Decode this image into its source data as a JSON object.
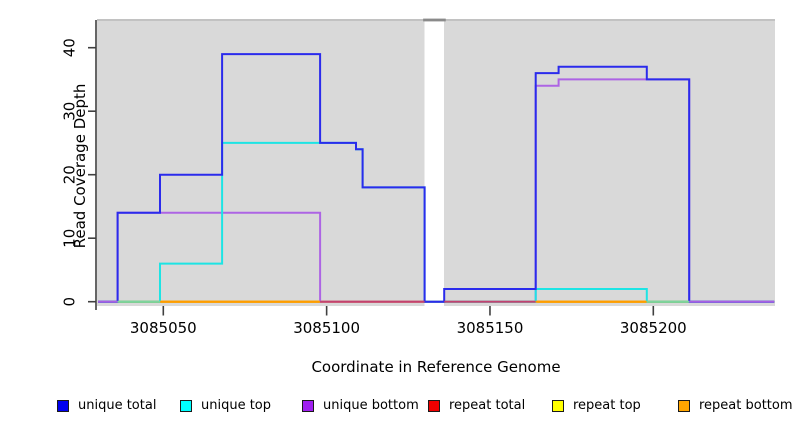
{
  "chart_data": {
    "type": "line",
    "subtype": "step-coverage-plot",
    "title": "",
    "xlabel": "Coordinate in Reference Genome",
    "ylabel": "Read Coverage Depth",
    "xlim": [
      3085030,
      3085237
    ],
    "ylim": [
      0,
      44
    ],
    "grid": "off",
    "legend_position": "bottom",
    "plot_background": "#d9d9d9",
    "x_ticks": [
      {
        "value": 3085050,
        "label": "3085050"
      },
      {
        "value": 3085100,
        "label": "3085100"
      },
      {
        "value": 3085150,
        "label": "3085150"
      },
      {
        "value": 3085200,
        "label": "3085200"
      }
    ],
    "y_ticks": [
      {
        "value": 0,
        "label": "0"
      },
      {
        "value": 10,
        "label": "10"
      },
      {
        "value": 20,
        "label": "20"
      },
      {
        "value": 30,
        "label": "30"
      },
      {
        "value": 40,
        "label": "40"
      }
    ],
    "no_coverage_gap": {
      "x_start": 3085130,
      "x_end": 3085136,
      "fill": "#ffffff",
      "top_cap_color": "#8a8a8a"
    },
    "series": [
      {
        "name": "unique total",
        "color": "#2b2bec",
        "legend_color": "#0000ee",
        "points": [
          [
            3085030,
            0
          ],
          [
            3085036,
            14
          ],
          [
            3085049,
            20
          ],
          [
            3085068,
            39
          ],
          [
            3085098,
            25
          ],
          [
            3085109,
            24
          ],
          [
            3085111,
            18
          ],
          [
            3085130,
            0
          ],
          [
            3085136,
            2
          ],
          [
            3085164,
            36
          ],
          [
            3085171,
            37
          ],
          [
            3085198,
            35
          ],
          [
            3085211,
            0
          ],
          [
            3085237,
            0
          ]
        ]
      },
      {
        "name": "unique top",
        "color": "#1de4e4",
        "legend_color": "#00ffff",
        "points": [
          [
            3085030,
            0
          ],
          [
            3085049,
            6
          ],
          [
            3085068,
            25
          ],
          [
            3085109,
            24
          ],
          [
            3085111,
            18
          ],
          [
            3085130,
            0
          ],
          [
            3085164,
            2
          ],
          [
            3085198,
            0
          ],
          [
            3085237,
            0
          ]
        ]
      },
      {
        "name": "unique bottom",
        "color": "#ad64e4",
        "legend_color": "#a020f0",
        "points": [
          [
            3085030,
            0
          ],
          [
            3085036,
            14
          ],
          [
            3085098,
            0
          ],
          [
            3085164,
            34
          ],
          [
            3085171,
            35
          ],
          [
            3085211,
            0
          ],
          [
            3085237,
            0
          ]
        ]
      },
      {
        "name": "repeat total",
        "color": "#cc2233",
        "legend_color": "#ee0000",
        "points": [
          [
            3085030,
            0
          ],
          [
            3085237,
            0
          ]
        ]
      },
      {
        "name": "repeat top",
        "color": "#f2f20a",
        "legend_color": "#ffff00",
        "points": [
          [
            3085030,
            0
          ],
          [
            3085237,
            0
          ]
        ]
      },
      {
        "name": "repeat bottom",
        "color": "#ff9d00",
        "legend_color": "#ffa500",
        "points": [
          [
            3085030,
            0
          ],
          [
            3085237,
            0
          ]
        ]
      }
    ],
    "baseline_overlap_segments": [
      {
        "x1": 3085030,
        "x2": 3085036,
        "color": "#a95fe3"
      },
      {
        "x1": 3085036,
        "x2": 3085049,
        "color": "#7ed49e"
      },
      {
        "x1": 3085049,
        "x2": 3085098,
        "color": "#ff9d00"
      },
      {
        "x1": 3085098,
        "x2": 3085130,
        "color": "#c34270"
      },
      {
        "x1": 3085136,
        "x2": 3085164,
        "color": "#c34270"
      },
      {
        "x1": 3085164,
        "x2": 3085198,
        "color": "#ff9d00"
      },
      {
        "x1": 3085198,
        "x2": 3085211,
        "color": "#7ed49e"
      },
      {
        "x1": 3085211,
        "x2": 3085237,
        "color": "#a95fe3"
      }
    ]
  }
}
